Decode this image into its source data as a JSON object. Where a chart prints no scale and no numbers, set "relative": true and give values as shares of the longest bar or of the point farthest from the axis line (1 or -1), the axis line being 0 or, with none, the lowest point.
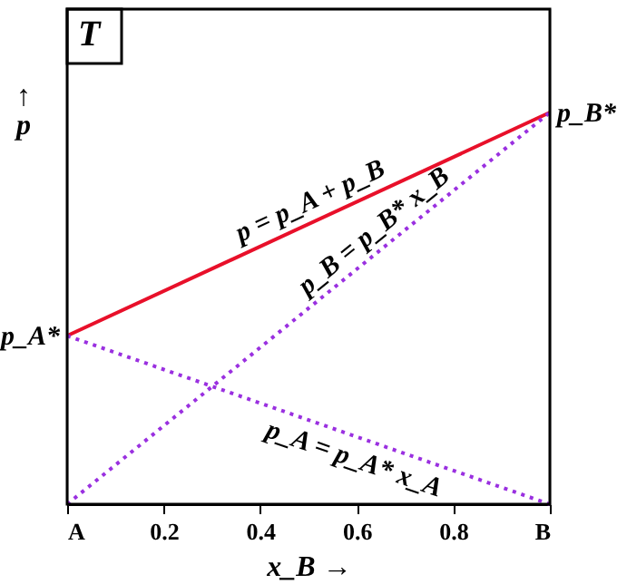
{
  "chart_data": {
    "type": "line",
    "relative": true,
    "xlabel": "x_B →",
    "ylabel": "↑\np",
    "x": [
      0,
      1
    ],
    "xlim": [
      0,
      1
    ],
    "xticks": [
      {
        "value": 0,
        "label": "A"
      },
      0.2,
      0.4,
      0.6,
      0.8,
      {
        "value": 1,
        "label": "B"
      }
    ],
    "series": [
      {
        "color": "#e8102a",
        "line_style": "solid",
        "values": [
          0.43,
          1
        ]
      },
      {
        "color": "#9a30e0",
        "line_style": "dotted",
        "values": [
          0,
          1
        ]
      },
      {
        "color": "#9a30e0",
        "line_style": "dotted",
        "values": [
          0.43,
          0
        ]
      }
    ],
    "annotations": [
      "T",
      {
        "text": "p_A*",
        "x": 0,
        "y": 0.43
      },
      {
        "text": "p_B*",
        "x": 1,
        "y": 1
      },
      {
        "text": "p = p_A + p_B",
        "x": 0.52,
        "y": 0.73
      },
      {
        "text": "p_B = p_B* x_B",
        "x": 0.66,
        "y": 0.66
      },
      {
        "text": "p_A = p_A* x_A",
        "x": 0.61,
        "y": 0.17
      }
    ],
    "grid": false,
    "marker": "none"
  }
}
